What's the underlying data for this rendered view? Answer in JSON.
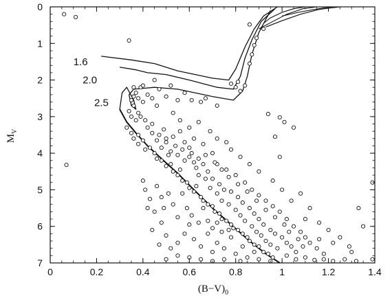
{
  "chart_data": {
    "type": "scatter",
    "xlabel": "(B−V)",
    "xlabel_sub": "0",
    "ylabel": "M",
    "ylabel_sub": "V",
    "xlim": [
      0,
      1.4
    ],
    "ylim": [
      7,
      0
    ],
    "y_inverted": true,
    "x_ticks": [
      0,
      0.2,
      0.4,
      0.6,
      0.8,
      1,
      1.2,
      1.4
    ],
    "x_tick_labels": [
      "0",
      "0.2",
      "0.4",
      "0.6",
      "0.8",
      "1",
      "1.2",
      "1.4"
    ],
    "y_ticks": [
      0,
      1,
      2,
      3,
      4,
      5,
      6,
      7
    ],
    "y_tick_labels": [
      "0",
      "1",
      "2",
      "3",
      "4",
      "5",
      "6",
      "7"
    ],
    "grid": false,
    "isochrones": [
      {
        "name": "1.6",
        "points": [
          [
            0.98,
            0.0
          ],
          [
            0.92,
            0.25
          ],
          [
            0.88,
            0.6
          ],
          [
            0.84,
            1.1
          ],
          [
            0.8,
            1.7
          ],
          [
            0.77,
            2.0
          ],
          [
            0.7,
            1.95
          ],
          [
            0.55,
            1.75
          ],
          [
            0.45,
            1.55
          ],
          [
            0.35,
            1.45
          ],
          [
            0.22,
            1.35
          ]
        ]
      },
      {
        "name": "2.0",
        "points": [
          [
            0.97,
            0.05
          ],
          [
            0.91,
            0.4
          ],
          [
            0.87,
            0.9
          ],
          [
            0.84,
            1.4
          ],
          [
            0.82,
            1.9
          ],
          [
            0.79,
            2.25
          ],
          [
            0.72,
            2.2
          ],
          [
            0.6,
            2.0
          ],
          [
            0.5,
            1.85
          ],
          [
            0.42,
            1.8
          ],
          [
            0.37,
            1.72
          ],
          [
            0.3,
            1.65
          ]
        ]
      },
      {
        "name": "2.5",
        "points": [
          [
            0.95,
            0.1
          ],
          [
            0.9,
            0.7
          ],
          [
            0.87,
            1.3
          ],
          [
            0.85,
            1.9
          ],
          [
            0.83,
            2.3
          ],
          [
            0.79,
            2.55
          ],
          [
            0.7,
            2.45
          ],
          [
            0.55,
            2.25
          ],
          [
            0.45,
            2.2
          ],
          [
            0.36,
            2.25
          ],
          [
            0.34,
            2.4
          ],
          [
            0.35,
            2.7
          ],
          [
            0.37,
            2.8
          ],
          [
            0.36,
            2.55
          ],
          [
            0.33,
            2.2
          ],
          [
            0.31,
            2.35
          ],
          [
            0.3,
            2.8
          ]
        ]
      }
    ],
    "main_sequence": [
      [
        0.3,
        2.8
      ],
      [
        0.33,
        3.15
      ],
      [
        0.37,
        3.45
      ],
      [
        0.42,
        3.8
      ],
      [
        0.48,
        4.15
      ],
      [
        0.55,
        4.55
      ],
      [
        0.62,
        5.0
      ],
      [
        0.7,
        5.5
      ],
      [
        0.78,
        5.95
      ],
      [
        0.86,
        6.4
      ],
      [
        0.93,
        6.75
      ],
      [
        0.99,
        7.0
      ]
    ],
    "red_giant_tracks": [
      [
        [
          0.92,
          0.45
        ],
        [
          0.95,
          0.3
        ],
        [
          1.0,
          0.15
        ],
        [
          1.05,
          0.05
        ],
        [
          1.1,
          0.0
        ]
      ],
      [
        [
          0.9,
          0.6
        ],
        [
          0.96,
          0.4
        ],
        [
          1.02,
          0.2
        ],
        [
          1.09,
          0.05
        ],
        [
          1.15,
          0.0
        ]
      ],
      [
        [
          0.93,
          0.55
        ],
        [
          1.0,
          0.38
        ],
        [
          1.08,
          0.2
        ],
        [
          1.16,
          0.07
        ],
        [
          1.25,
          0.0
        ]
      ],
      [
        [
          1.0,
          0.25
        ],
        [
          1.07,
          0.15
        ],
        [
          1.13,
          0.08
        ],
        [
          1.18,
          0.03
        ],
        [
          1.22,
          0.0
        ]
      ]
    ],
    "stars": [
      [
        0.06,
        0.2
      ],
      [
        0.11,
        0.28
      ],
      [
        0.34,
        0.92
      ],
      [
        0.86,
        0.48
      ],
      [
        0.07,
        4.32
      ],
      [
        0.94,
        2.93
      ],
      [
        0.99,
        3.02
      ],
      [
        0.97,
        3.55
      ],
      [
        1.01,
        3.15
      ],
      [
        1.05,
        3.3
      ],
      [
        0.99,
        4.1
      ],
      [
        0.35,
        2.55
      ],
      [
        0.36,
        2.45
      ],
      [
        0.37,
        2.35
      ],
      [
        0.38,
        2.5
      ],
      [
        0.36,
        2.7
      ],
      [
        0.34,
        2.85
      ],
      [
        0.35,
        3.0
      ],
      [
        0.37,
        3.1
      ],
      [
        0.38,
        2.9
      ],
      [
        0.4,
        2.6
      ],
      [
        0.42,
        2.4
      ],
      [
        0.44,
        2.5
      ],
      [
        0.46,
        2.7
      ],
      [
        0.36,
        2.2
      ],
      [
        0.39,
        2.2
      ],
      [
        0.33,
        3.3
      ],
      [
        0.35,
        3.45
      ],
      [
        0.36,
        3.6
      ],
      [
        0.38,
        3.5
      ],
      [
        0.38,
        3.75
      ],
      [
        0.4,
        3.65
      ],
      [
        0.41,
        3.9
      ],
      [
        0.43,
        3.85
      ],
      [
        0.45,
        4.0
      ],
      [
        0.46,
        4.15
      ],
      [
        0.48,
        4.2
      ],
      [
        0.5,
        4.35
      ],
      [
        0.52,
        4.3
      ],
      [
        0.53,
        4.5
      ],
      [
        0.55,
        4.6
      ],
      [
        0.56,
        4.45
      ],
      [
        0.57,
        4.75
      ],
      [
        0.59,
        4.8
      ],
      [
        0.6,
        4.95
      ],
      [
        0.62,
        5.05
      ],
      [
        0.63,
        4.9
      ],
      [
        0.65,
        5.2
      ],
      [
        0.66,
        5.3
      ],
      [
        0.68,
        5.4
      ],
      [
        0.7,
        5.45
      ],
      [
        0.71,
        5.6
      ],
      [
        0.73,
        5.65
      ],
      [
        0.74,
        5.8
      ],
      [
        0.76,
        5.85
      ],
      [
        0.78,
        5.95
      ],
      [
        0.79,
        6.05
      ],
      [
        0.81,
        6.1
      ],
      [
        0.83,
        6.2
      ],
      [
        0.85,
        6.3
      ],
      [
        0.86,
        6.4
      ],
      [
        0.88,
        6.5
      ],
      [
        0.9,
        6.55
      ],
      [
        0.92,
        6.7
      ],
      [
        0.94,
        6.75
      ],
      [
        0.96,
        6.85
      ],
      [
        0.44,
        3.2
      ],
      [
        0.47,
        3.5
      ],
      [
        0.5,
        3.7
      ],
      [
        0.52,
        3.95
      ],
      [
        0.55,
        4.05
      ],
      [
        0.58,
        4.2
      ],
      [
        0.6,
        4.1
      ],
      [
        0.63,
        4.4
      ],
      [
        0.64,
        4.6
      ],
      [
        0.67,
        4.7
      ],
      [
        0.69,
        4.95
      ],
      [
        0.72,
        5.1
      ],
      [
        0.74,
        5.3
      ],
      [
        0.77,
        5.4
      ],
      [
        0.8,
        5.55
      ],
      [
        0.82,
        5.7
      ],
      [
        0.84,
        5.85
      ],
      [
        0.87,
        6.0
      ],
      [
        0.89,
        6.15
      ],
      [
        0.91,
        6.25
      ],
      [
        0.93,
        6.4
      ],
      [
        0.95,
        6.5
      ],
      [
        0.98,
        6.6
      ],
      [
        0.5,
        3.6
      ],
      [
        0.54,
        3.8
      ],
      [
        0.57,
        3.9
      ],
      [
        0.6,
        3.85
      ],
      [
        0.62,
        4.25
      ],
      [
        0.66,
        4.3
      ],
      [
        0.68,
        4.5
      ],
      [
        0.7,
        4.7
      ],
      [
        0.73,
        4.85
      ],
      [
        0.75,
        5.0
      ],
      [
        0.78,
        5.05
      ],
      [
        0.81,
        5.2
      ],
      [
        0.83,
        5.35
      ],
      [
        0.86,
        5.5
      ],
      [
        0.88,
        5.65
      ],
      [
        0.9,
        5.8
      ],
      [
        0.92,
        5.95
      ],
      [
        0.95,
        6.1
      ],
      [
        0.97,
        6.2
      ],
      [
        1.0,
        6.3
      ],
      [
        1.02,
        6.45
      ],
      [
        1.04,
        6.55
      ],
      [
        1.06,
        6.7
      ],
      [
        0.56,
        3.4
      ],
      [
        0.62,
        3.6
      ],
      [
        0.66,
        3.75
      ],
      [
        0.7,
        4.0
      ],
      [
        0.72,
        4.3
      ],
      [
        0.76,
        4.45
      ],
      [
        0.8,
        4.6
      ],
      [
        0.84,
        4.8
      ],
      [
        0.87,
        5.0
      ],
      [
        0.9,
        5.15
      ],
      [
        0.93,
        5.3
      ],
      [
        0.96,
        5.45
      ],
      [
        0.99,
        5.6
      ],
      [
        1.02,
        5.8
      ],
      [
        1.05,
        6.0
      ],
      [
        1.08,
        6.15
      ],
      [
        1.1,
        6.3
      ],
      [
        1.12,
        6.45
      ],
      [
        1.15,
        6.6
      ],
      [
        1.18,
        6.75
      ],
      [
        0.43,
        5.25
      ],
      [
        0.45,
        5.6
      ],
      [
        0.48,
        5.9
      ],
      [
        0.5,
        6.25
      ],
      [
        0.47,
        6.5
      ],
      [
        0.52,
        6.6
      ],
      [
        0.55,
        6.45
      ],
      [
        0.58,
        6.2
      ],
      [
        0.6,
        5.95
      ],
      [
        0.62,
        6.35
      ],
      [
        0.65,
        6.55
      ],
      [
        0.68,
        6.2
      ],
      [
        0.7,
        6.7
      ],
      [
        0.72,
        6.45
      ],
      [
        0.75,
        6.6
      ],
      [
        0.78,
        6.3
      ],
      [
        0.8,
        6.75
      ],
      [
        0.83,
        6.55
      ],
      [
        0.85,
        6.85
      ],
      [
        0.88,
        6.7
      ],
      [
        0.9,
        6.9
      ],
      [
        0.5,
        6.9
      ],
      [
        0.55,
        6.8
      ],
      [
        0.6,
        6.85
      ],
      [
        0.65,
        6.9
      ],
      [
        0.7,
        6.95
      ],
      [
        0.75,
        6.9
      ],
      [
        0.82,
        6.95
      ],
      [
        0.95,
        6.95
      ],
      [
        1.02,
        6.8
      ],
      [
        1.06,
        6.9
      ],
      [
        1.1,
        6.85
      ],
      [
        1.14,
        6.92
      ],
      [
        1.18,
        6.9
      ],
      [
        1.22,
        6.95
      ],
      [
        1.27,
        6.9
      ],
      [
        1.32,
        6.95
      ],
      [
        1.39,
        6.9
      ],
      [
        0.4,
        4.75
      ],
      [
        0.41,
        5.0
      ],
      [
        0.42,
        5.5
      ],
      [
        0.44,
        6.1
      ],
      [
        0.46,
        4.9
      ],
      [
        0.48,
        5.2
      ],
      [
        0.49,
        5.5
      ],
      [
        0.51,
        5.1
      ],
      [
        0.53,
        5.4
      ],
      [
        0.55,
        5.75
      ],
      [
        0.57,
        5.1
      ],
      [
        0.59,
        5.5
      ],
      [
        0.61,
        5.7
      ],
      [
        0.64,
        5.9
      ],
      [
        0.66,
        5.5
      ],
      [
        0.68,
        5.85
      ],
      [
        0.7,
        6.05
      ],
      [
        0.72,
        5.9
      ],
      [
        0.74,
        6.15
      ],
      [
        0.77,
        6.1
      ],
      [
        1.08,
        5.1
      ],
      [
        1.12,
        5.5
      ],
      [
        1.16,
        5.9
      ],
      [
        1.2,
        6.1
      ],
      [
        1.25,
        6.3
      ],
      [
        1.29,
        6.55
      ],
      [
        1.33,
        5.5
      ],
      [
        1.35,
        6.0
      ],
      [
        1.39,
        4.8
      ],
      [
        1.3,
        6.7
      ],
      [
        1.22,
        6.45
      ],
      [
        1.16,
        6.35
      ],
      [
        1.1,
        5.8
      ],
      [
        1.04,
        5.3
      ],
      [
        1.0,
        5.0
      ],
      [
        0.96,
        4.75
      ],
      [
        0.9,
        4.5
      ],
      [
        0.86,
        4.3
      ],
      [
        0.82,
        4.1
      ],
      [
        0.78,
        3.9
      ],
      [
        0.76,
        3.7
      ],
      [
        0.72,
        3.6
      ],
      [
        0.69,
        3.4
      ],
      [
        0.64,
        3.15
      ],
      [
        0.6,
        3.3
      ],
      [
        0.56,
        3.1
      ],
      [
        0.53,
        2.9
      ],
      [
        0.4,
        2.15
      ],
      [
        0.45,
        2.0
      ],
      [
        0.52,
        2.15
      ],
      [
        0.58,
        2.35
      ],
      [
        0.65,
        2.6
      ],
      [
        0.72,
        2.7
      ],
      [
        0.67,
        2.5
      ],
      [
        0.61,
        2.55
      ],
      [
        0.55,
        2.55
      ],
      [
        0.5,
        2.45
      ],
      [
        0.47,
        2.25
      ],
      [
        0.42,
        3.3
      ],
      [
        0.41,
        3.1
      ],
      [
        0.39,
        3.0
      ],
      [
        0.44,
        3.45
      ],
      [
        0.46,
        3.65
      ],
      [
        0.48,
        3.85
      ],
      [
        0.51,
        4.05
      ],
      [
        0.49,
        3.35
      ],
      [
        0.53,
        3.55
      ],
      [
        0.58,
        3.7
      ],
      [
        0.61,
        4.0
      ],
      [
        0.64,
        4.15
      ],
      [
        0.67,
        4.05
      ],
      [
        0.71,
        4.25
      ],
      [
        0.74,
        4.45
      ],
      [
        0.77,
        4.65
      ],
      [
        0.81,
        4.85
      ],
      [
        0.85,
        5.05
      ],
      [
        0.89,
        5.3
      ],
      [
        0.93,
        5.55
      ],
      [
        0.97,
        5.75
      ],
      [
        1.01,
        5.95
      ],
      [
        1.03,
        6.15
      ],
      [
        1.07,
        6.35
      ],
      [
        1.09,
        6.55
      ],
      [
        0.78,
        2.1
      ],
      [
        0.8,
        2.2
      ],
      [
        0.82,
        2.3
      ],
      [
        0.84,
        2.15
      ],
      [
        0.81,
        2.05
      ],
      [
        0.92,
        0.6
      ],
      [
        0.89,
        0.85
      ],
      [
        0.88,
        1.05
      ],
      [
        0.87,
        1.3
      ],
      [
        0.86,
        1.55
      ]
    ],
    "isochrone_labels": [
      {
        "text": "1.6",
        "x": 0.1,
        "y": 1.5
      },
      {
        "text": "2.0",
        "x": 0.14,
        "y": 2.0
      },
      {
        "text": "2.5",
        "x": 0.19,
        "y": 2.62
      }
    ]
  }
}
